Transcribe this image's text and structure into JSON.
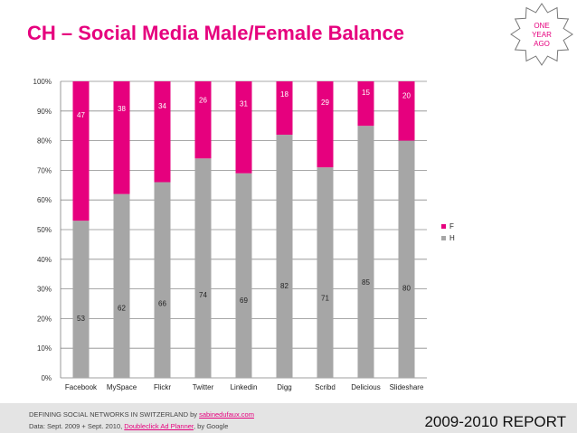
{
  "header": {
    "title": "CH – Social Media Male/Female Balance",
    "badge_lines": [
      "ONE",
      "YEAR",
      "AGO"
    ]
  },
  "colors": {
    "female": "#e6007e",
    "male": "#a6a6a6",
    "accent": "#e6007e"
  },
  "chart_data": {
    "type": "bar",
    "stacked": true,
    "percent": true,
    "categories": [
      "Facebook",
      "MySpace",
      "Flickr",
      "Twitter",
      "Linkedin",
      "Digg",
      "Scribd",
      "Delicious",
      "Slideshare"
    ],
    "series": [
      {
        "name": "H",
        "values": [
          53,
          62,
          66,
          74,
          69,
          82,
          71,
          85,
          80
        ]
      },
      {
        "name": "F",
        "values": [
          47,
          38,
          34,
          26,
          31,
          18,
          29,
          15,
          20
        ]
      }
    ],
    "y_ticks": [
      "0%",
      "10%",
      "20%",
      "30%",
      "40%",
      "50%",
      "60%",
      "70%",
      "80%",
      "90%",
      "100%"
    ],
    "ylim": [
      0,
      100
    ],
    "legend": [
      "F",
      "H"
    ],
    "legend_position": "right",
    "grid": true
  },
  "footer": {
    "line1_prefix": "DEFINING SOCIAL NETWORKS IN SWITZERLAND by ",
    "line1_link": "sabinedufaux.com",
    "line2_prefix": "Data: Sept. 2009 + Sept. 2010, ",
    "line2_link": "Doubleclick Ad Planner",
    "line2_suffix": ", by Google",
    "report": "2009-2010 REPORT"
  }
}
